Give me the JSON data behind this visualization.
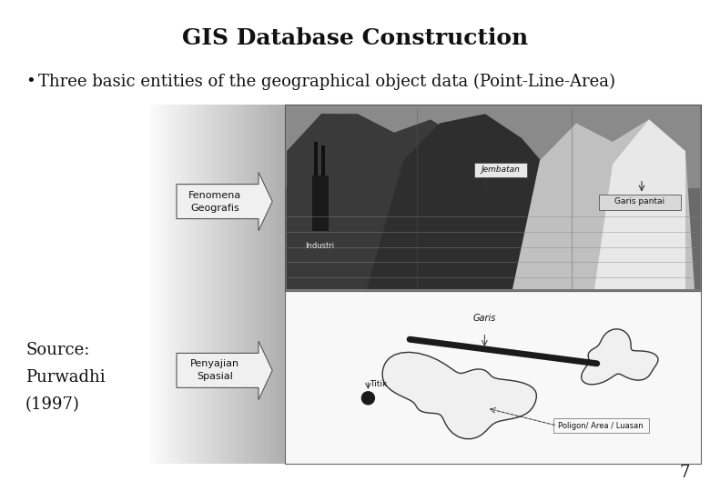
{
  "title": "GIS Database Construction",
  "bullet": "Three basic entities of the geographical object data (Point-Line-Area)",
  "source_line1": "Source:",
  "source_line2": "Purwadhi",
  "source_line3": "(1997)",
  "page_number": "7",
  "bg_color": "#ffffff",
  "title_fontsize": 18,
  "bullet_fontsize": 13,
  "source_fontsize": 13,
  "page_fontsize": 13
}
